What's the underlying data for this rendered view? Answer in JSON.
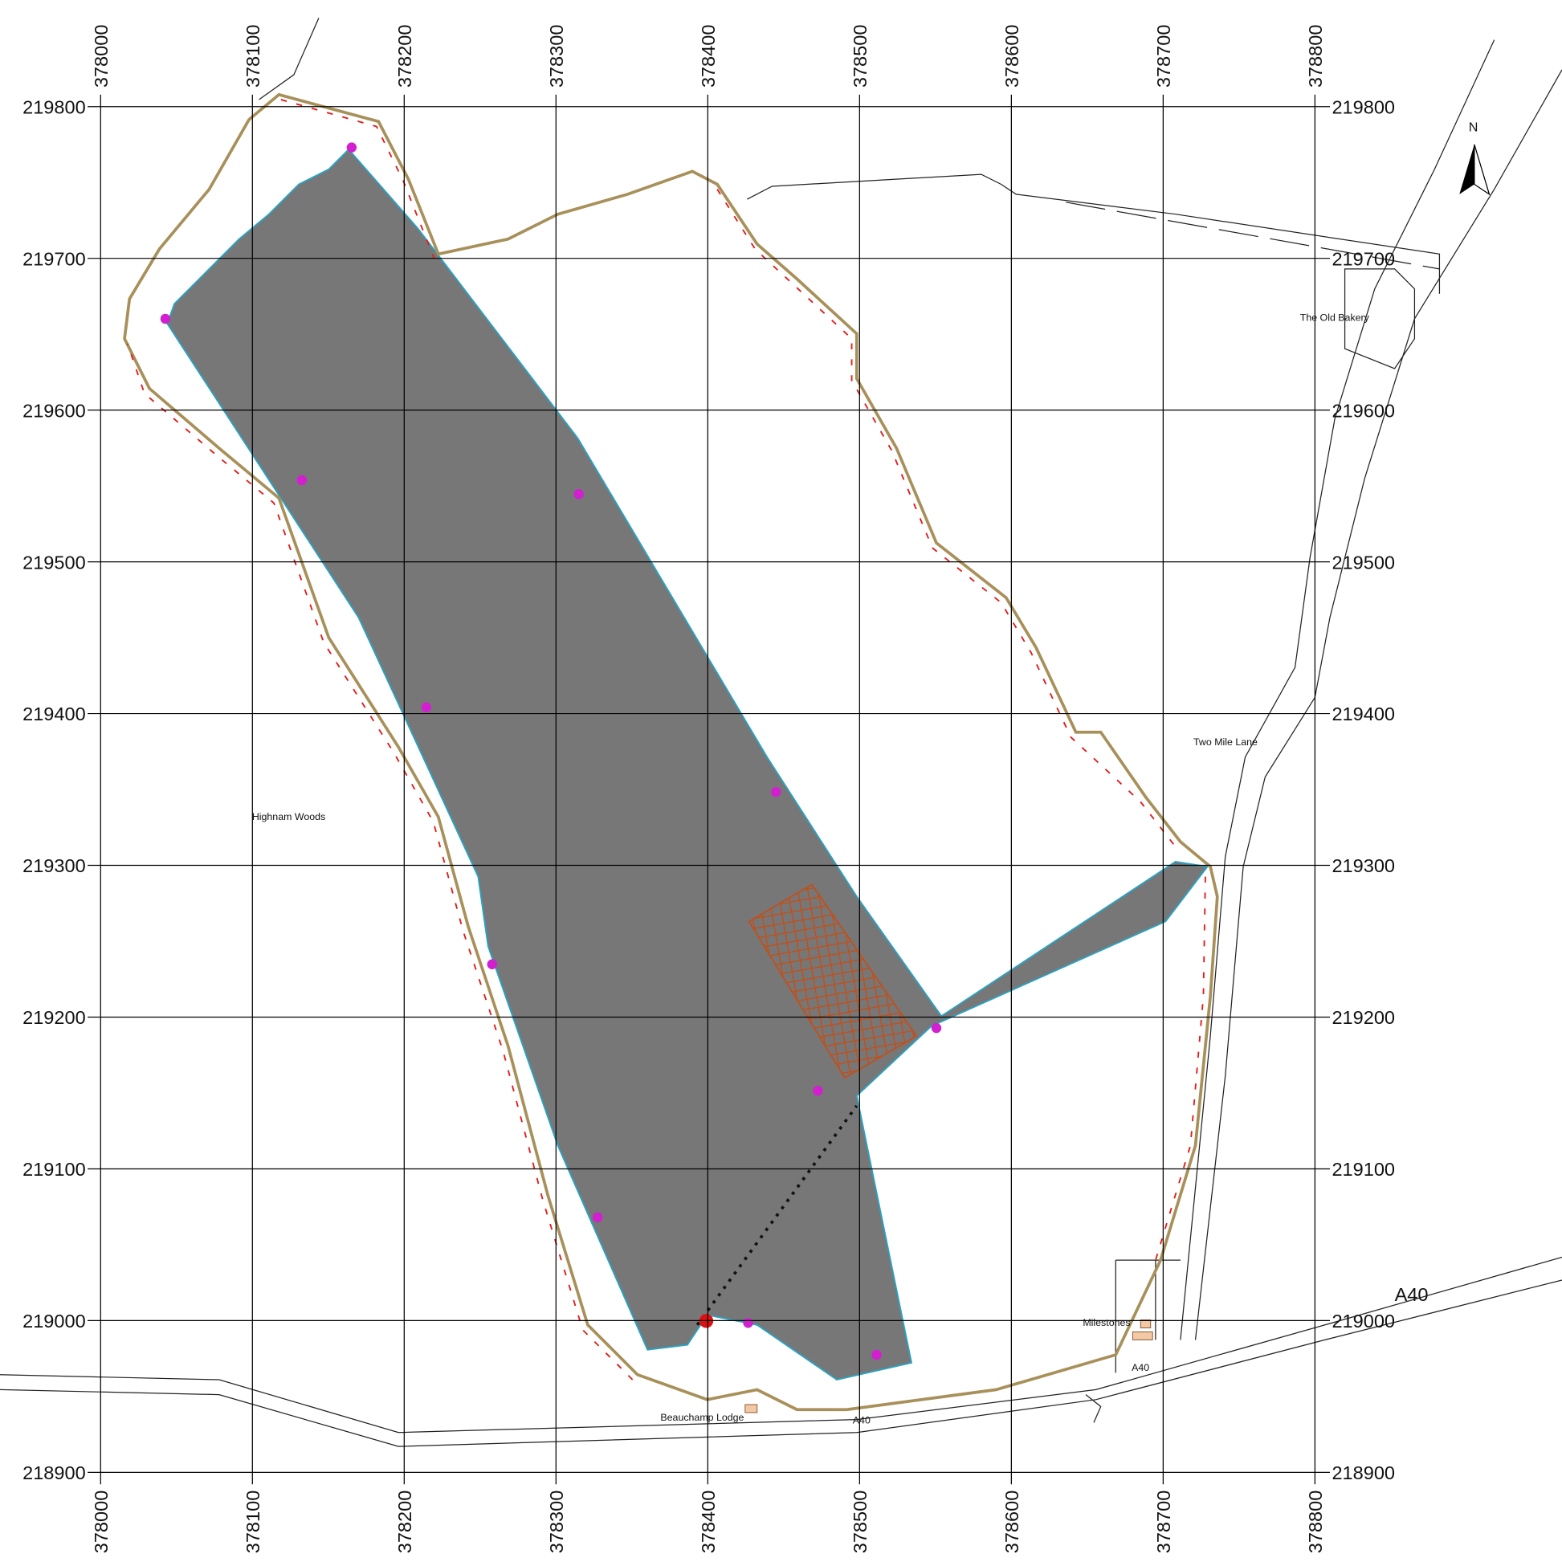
{
  "map": {
    "eastings": [
      378000,
      378100,
      378200,
      378300,
      378400,
      378500,
      378600,
      378700,
      378800
    ],
    "northings": [
      219800,
      219700,
      219600,
      219500,
      219400,
      219300,
      219200,
      219100,
      219000,
      218900
    ],
    "north": "N",
    "places": [
      "The Old Bakery",
      "Highnam Woods",
      "Two Mile Lane",
      "A40",
      "Milestones",
      "A40",
      "Beauchamp Lodge",
      "A40"
    ]
  }
}
